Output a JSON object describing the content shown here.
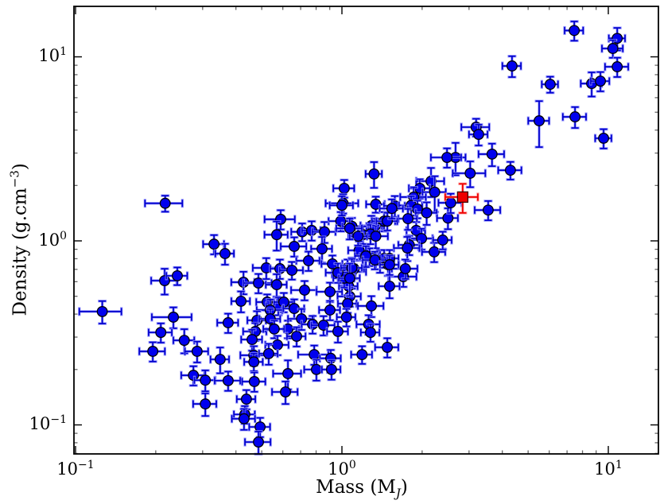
{
  "chart_data": {
    "type": "scatter",
    "title": "",
    "x_scale": "log",
    "y_scale": "log",
    "xlabel": "Mass (M_J)",
    "ylabel": "Density (g.cm^-3)",
    "xlabel_parts": {
      "main": "Mass (M",
      "sub": "J",
      "tail": ")"
    },
    "ylabel_parts": {
      "main": "Density (g.cm",
      "sup": "−3",
      "tail": ")"
    },
    "xlim": [
      0.098,
      15.4
    ],
    "ylim": [
      0.069,
      18.8
    ],
    "grid": false,
    "legend": null,
    "x_ticks": {
      "exponents": [
        -1,
        0,
        1
      ],
      "labels": [
        {
          "base": "10",
          "exp": "−1"
        },
        {
          "base": "10",
          "exp": "0"
        },
        {
          "base": "10",
          "exp": "1"
        }
      ]
    },
    "y_ticks": {
      "exponents": [
        -1,
        0,
        1
      ],
      "labels": [
        {
          "base": "10",
          "exp": "−1"
        },
        {
          "base": "10",
          "exp": "0"
        },
        {
          "base": "10",
          "exp": "1"
        }
      ]
    },
    "series": [
      {
        "name": "exoplanet-sample",
        "marker": "circle",
        "marker_color": "#0000ee",
        "marker_edge": "#000000",
        "errorbar_color": "#0000cc",
        "errorbar_halo": "#8f8fff",
        "points_format": [
          "mass_MJ",
          "density_g_cm3",
          "xerr_frac",
          "yerr_frac"
        ],
        "points": [
          [
            7.45,
            13.9,
            0.08,
            0.12
          ],
          [
            10.8,
            12.6,
            0.07,
            0.14
          ],
          [
            10.4,
            11.1,
            0.09,
            0.11
          ],
          [
            4.35,
            8.92,
            0.08,
            0.13
          ],
          [
            10.8,
            8.83,
            0.1,
            0.12
          ],
          [
            6.05,
            7.09,
            0.07,
            0.1
          ],
          [
            8.66,
            7.16,
            0.09,
            0.15
          ],
          [
            9.34,
            7.38,
            0.08,
            0.12
          ],
          [
            5.5,
            4.49,
            0.09,
            0.28
          ],
          [
            7.5,
            4.72,
            0.1,
            0.13
          ],
          [
            3.19,
            4.15,
            0.12,
            0.11
          ],
          [
            3.26,
            3.79,
            0.08,
            0.13
          ],
          [
            9.6,
            3.61,
            0.07,
            0.12
          ],
          [
            3.66,
            2.96,
            0.11,
            0.14
          ],
          [
            2.67,
            2.84,
            0.09,
            0.2
          ],
          [
            2.48,
            2.84,
            0.13,
            0.12
          ],
          [
            3.03,
            2.33,
            0.14,
            0.16
          ],
          [
            4.29,
            2.42,
            0.1,
            0.11
          ],
          [
            3.54,
            1.47,
            0.11,
            0.12
          ],
          [
            0.217,
            1.6,
            0.16,
            0.1
          ],
          [
            0.331,
            0.96,
            0.09,
            0.12
          ],
          [
            0.364,
            0.853,
            0.08,
            0.13
          ],
          [
            0.216,
            0.608,
            0.11,
            0.16
          ],
          [
            0.241,
            0.646,
            0.09,
            0.11
          ],
          [
            0.427,
            0.596,
            0.1,
            0.14
          ],
          [
            0.486,
            0.59,
            0.12,
            0.12
          ],
          [
            0.418,
            0.47,
            0.08,
            0.13
          ],
          [
            0.524,
            0.465,
            0.09,
            0.1
          ],
          [
            1.32,
            2.31,
            0.07,
            0.16
          ],
          [
            2.16,
            2.11,
            0.12,
            0.18
          ],
          [
            1.96,
            1.93,
            0.09,
            0.12
          ],
          [
            2.23,
            1.84,
            0.1,
            0.22
          ],
          [
            1.86,
            1.73,
            0.11,
            0.13
          ],
          [
            1.02,
            1.93,
            0.09,
            0.11
          ],
          [
            1.01,
            1.6,
            0.14,
            0.12
          ],
          [
            1.34,
            1.58,
            0.08,
            0.1
          ],
          [
            1.58,
            1.55,
            0.09,
            0.13
          ],
          [
            1.82,
            1.56,
            0.1,
            0.12
          ],
          [
            1.92,
            1.49,
            0.08,
            0.11
          ],
          [
            2.08,
            1.42,
            0.09,
            0.14
          ],
          [
            0.99,
            1.28,
            0.1,
            0.12
          ],
          [
            1.09,
            1.2,
            0.08,
            0.11
          ],
          [
            1.29,
            1.21,
            0.09,
            0.13
          ],
          [
            1.33,
            1.2,
            0.07,
            0.1
          ],
          [
            1.44,
            1.28,
            0.1,
            0.12
          ],
          [
            1.2,
            1.08,
            0.09,
            0.11
          ],
          [
            1.28,
            1.09,
            0.08,
            0.12
          ],
          [
            1.34,
            1.06,
            0.11,
            0.14
          ],
          [
            0.589,
            1.31,
            0.13,
            0.12
          ],
          [
            0.569,
            1.08,
            0.1,
            0.18
          ],
          [
            0.709,
            1.12,
            0.09,
            0.11
          ],
          [
            0.77,
            1.14,
            0.08,
            0.12
          ],
          [
            0.86,
            1.12,
            0.1,
            0.13
          ],
          [
            0.662,
            0.933,
            0.11,
            0.12
          ],
          [
            0.842,
            0.905,
            0.09,
            0.16
          ],
          [
            1.9,
            1.14,
            0.08,
            0.11
          ],
          [
            1.99,
            1.03,
            0.1,
            0.13
          ],
          [
            1.79,
            0.951,
            0.09,
            0.12
          ],
          [
            1.76,
            0.914,
            0.11,
            0.15
          ],
          [
            2.22,
            0.871,
            0.1,
            0.12
          ],
          [
            2.39,
            1.01,
            0.08,
            0.11
          ],
          [
            2.5,
            1.33,
            0.09,
            0.13
          ],
          [
            2.56,
            1.61,
            0.1,
            0.12
          ],
          [
            1.16,
            0.888,
            0.09,
            0.12
          ],
          [
            1.27,
            0.82,
            0.08,
            0.11
          ],
          [
            1.39,
            0.78,
            0.12,
            0.14
          ],
          [
            0.749,
            0.78,
            0.1,
            0.12
          ],
          [
            0.921,
            0.75,
            0.09,
            0.11
          ],
          [
            0.52,
            0.713,
            0.11,
            0.13
          ],
          [
            0.585,
            0.706,
            0.08,
            0.12
          ],
          [
            0.649,
            0.692,
            0.1,
            0.11
          ],
          [
            0.569,
            0.578,
            0.09,
            0.14
          ],
          [
            0.724,
            0.54,
            0.11,
            0.12
          ],
          [
            1.05,
            0.713,
            0.08,
            0.11
          ],
          [
            1.09,
            0.679,
            0.13,
            0.19
          ],
          [
            1.11,
            0.706,
            0.09,
            0.12
          ],
          [
            1.02,
            0.659,
            0.1,
            0.11
          ],
          [
            1.06,
            0.567,
            0.08,
            0.13
          ],
          [
            0.902,
            0.529,
            0.11,
            0.12
          ],
          [
            1.44,
            0.803,
            0.09,
            0.11
          ],
          [
            1.49,
            0.742,
            0.1,
            0.13
          ],
          [
            1.7,
            0.639,
            0.12,
            0.12
          ],
          [
            1.51,
            0.567,
            0.09,
            0.14
          ],
          [
            1.07,
            0.499,
            0.1,
            0.12
          ],
          [
            1.05,
            0.456,
            0.08,
            0.11
          ],
          [
            1.29,
            0.443,
            0.11,
            0.13
          ],
          [
            0.902,
            0.421,
            0.09,
            0.12
          ],
          [
            0.577,
            0.443,
            0.1,
            0.11
          ],
          [
            0.605,
            0.465,
            0.08,
            0.12
          ],
          [
            0.538,
            0.421,
            0.11,
            0.14
          ],
          [
            0.662,
            0.429,
            0.09,
            0.12
          ],
          [
            1.0,
            1.56,
            0.1,
            0.12
          ],
          [
            1.51,
            0.803,
            0.08,
            0.11
          ],
          [
            1.23,
            0.828,
            0.09,
            0.13
          ],
          [
            1.73,
            0.706,
            0.11,
            0.12
          ],
          [
            1.02,
            0.627,
            0.09,
            0.11
          ],
          [
            0.966,
            0.672,
            0.1,
            0.12
          ],
          [
            1.77,
            1.32,
            0.08,
            0.13
          ],
          [
            1.48,
            1.28,
            0.09,
            0.11
          ],
          [
            1.54,
            1.5,
            0.1,
            0.12
          ],
          [
            1.15,
            1.06,
            0.08,
            0.11
          ],
          [
            1.07,
            1.17,
            0.11,
            0.13
          ],
          [
            1.09,
            0.713,
            0.09,
            0.12
          ],
          [
            1.33,
            0.787,
            0.1,
            0.11
          ],
          [
            1.51,
            0.742,
            0.08,
            0.12
          ],
          [
            1.07,
            0.627,
            0.09,
            0.2
          ],
          [
            0.126,
            0.413,
            0.18,
            0.14
          ],
          [
            0.233,
            0.385,
            0.17,
            0.13
          ],
          [
            0.209,
            0.318,
            0.1,
            0.12
          ],
          [
            0.256,
            0.288,
            0.09,
            0.15
          ],
          [
            0.195,
            0.251,
            0.11,
            0.12
          ],
          [
            0.286,
            0.251,
            0.1,
            0.13
          ],
          [
            0.374,
            0.359,
            0.09,
            0.12
          ],
          [
            0.349,
            0.227,
            0.08,
            0.16
          ],
          [
            0.277,
            0.186,
            0.1,
            0.12
          ],
          [
            0.307,
            0.175,
            0.09,
            0.13
          ],
          [
            0.374,
            0.174,
            0.11,
            0.12
          ],
          [
            0.307,
            0.13,
            0.1,
            0.14
          ],
          [
            0.438,
            0.138,
            0.08,
            0.12
          ],
          [
            0.432,
            0.114,
            0.09,
            0.11
          ],
          [
            0.429,
            0.108,
            0.1,
            0.13
          ],
          [
            0.493,
            0.0975,
            0.09,
            0.12
          ],
          [
            0.486,
            0.0807,
            0.11,
            0.14
          ],
          [
            0.48,
            0.37,
            0.08,
            0.12
          ],
          [
            0.473,
            0.322,
            0.1,
            0.11
          ],
          [
            0.46,
            0.291,
            0.09,
            0.13
          ],
          [
            0.467,
            0.239,
            0.11,
            0.12
          ],
          [
            0.467,
            0.22,
            0.08,
            0.11
          ],
          [
            0.469,
            0.172,
            0.1,
            0.12
          ],
          [
            0.538,
            0.377,
            0.09,
            0.13
          ],
          [
            0.627,
            0.332,
            0.1,
            0.11
          ],
          [
            0.676,
            0.303,
            0.08,
            0.12
          ],
          [
            0.705,
            0.377,
            0.11,
            0.13
          ],
          [
            0.557,
            0.332,
            0.09,
            0.11
          ],
          [
            0.573,
            0.272,
            0.1,
            0.12
          ],
          [
            0.531,
            0.244,
            0.08,
            0.13
          ],
          [
            0.627,
            0.19,
            0.12,
            0.18
          ],
          [
            0.776,
            0.352,
            0.09,
            0.11
          ],
          [
            0.853,
            0.348,
            0.1,
            0.12
          ],
          [
            1.04,
            0.385,
            0.08,
            0.11
          ],
          [
            0.966,
            0.322,
            0.09,
            0.13
          ],
          [
            1.26,
            0.352,
            0.1,
            0.12
          ],
          [
            1.28,
            0.318,
            0.08,
            0.11
          ],
          [
            0.787,
            0.241,
            0.13,
            0.12
          ],
          [
            0.908,
            0.23,
            0.09,
            0.11
          ],
          [
            0.802,
            0.2,
            0.1,
            0.13
          ],
          [
            0.914,
            0.2,
            0.08,
            0.12
          ],
          [
            1.19,
            0.241,
            0.09,
            0.11
          ],
          [
            1.48,
            0.264,
            0.1,
            0.12
          ],
          [
            0.614,
            0.151,
            0.11,
            0.14
          ]
        ]
      },
      {
        "name": "highlighted-planet",
        "marker": "square",
        "marker_color": "#ee0000",
        "marker_edge": "#3a0000",
        "errorbar_color": "#ee0000",
        "errorbar_halo": "#ff9090",
        "points_format": [
          "mass_MJ",
          "density_g_cm3",
          "xerr_frac",
          "yerr_frac"
        ],
        "points": [
          [
            2.84,
            1.73,
            0.14,
            0.18
          ]
        ]
      }
    ],
    "frame_color": "#000000",
    "background_color": "#ffffff"
  }
}
